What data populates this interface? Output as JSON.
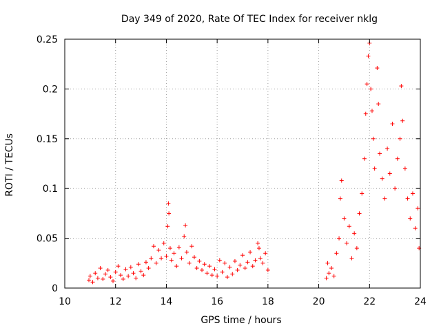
{
  "chart_data": {
    "type": "scatter",
    "title": "Day 349 of 2020, Rate Of TEC Index for receiver nklg",
    "xlabel": "GPS time / hours",
    "ylabel": "ROTI / TECUs",
    "xlim": [
      10,
      24
    ],
    "ylim": [
      0,
      0.25
    ],
    "xticks": [
      10,
      12,
      14,
      16,
      18,
      20,
      22,
      24
    ],
    "xtick_labels": [
      "10",
      "12",
      "14",
      "16",
      "18",
      "20",
      "22",
      "24"
    ],
    "yticks": [
      0,
      0.05,
      0.1,
      0.15,
      0.2,
      0.25
    ],
    "ytick_labels": [
      "0",
      "0.05",
      "0.1",
      "0.15",
      "0.2",
      "0.25"
    ],
    "grid": true,
    "marker": "+",
    "color": "#ff0000",
    "series": [
      {
        "name": "ROTI",
        "points": [
          [
            10.95,
            0.008
          ],
          [
            11.0,
            0.012
          ],
          [
            11.1,
            0.006
          ],
          [
            11.2,
            0.015
          ],
          [
            11.3,
            0.01
          ],
          [
            11.4,
            0.02
          ],
          [
            11.5,
            0.009
          ],
          [
            11.6,
            0.014
          ],
          [
            11.7,
            0.018
          ],
          [
            11.8,
            0.011
          ],
          [
            11.9,
            0.007
          ],
          [
            12.0,
            0.016
          ],
          [
            12.1,
            0.022
          ],
          [
            12.2,
            0.013
          ],
          [
            12.3,
            0.009
          ],
          [
            12.4,
            0.019
          ],
          [
            12.5,
            0.012
          ],
          [
            12.6,
            0.021
          ],
          [
            12.7,
            0.015
          ],
          [
            12.8,
            0.01
          ],
          [
            12.9,
            0.024
          ],
          [
            13.0,
            0.017
          ],
          [
            13.1,
            0.013
          ],
          [
            13.2,
            0.026
          ],
          [
            13.3,
            0.02
          ],
          [
            13.4,
            0.03
          ],
          [
            13.5,
            0.042
          ],
          [
            13.6,
            0.025
          ],
          [
            13.7,
            0.038
          ],
          [
            13.8,
            0.03
          ],
          [
            13.9,
            0.045
          ],
          [
            14.0,
            0.032
          ],
          [
            14.05,
            0.062
          ],
          [
            14.08,
            0.085
          ],
          [
            14.1,
            0.075
          ],
          [
            14.15,
            0.04
          ],
          [
            14.2,
            0.028
          ],
          [
            14.3,
            0.035
          ],
          [
            14.4,
            0.022
          ],
          [
            14.5,
            0.041
          ],
          [
            14.6,
            0.03
          ],
          [
            14.7,
            0.052
          ],
          [
            14.75,
            0.063
          ],
          [
            14.8,
            0.036
          ],
          [
            14.9,
            0.025
          ],
          [
            15.0,
            0.042
          ],
          [
            15.1,
            0.031
          ],
          [
            15.2,
            0.02
          ],
          [
            15.3,
            0.027
          ],
          [
            15.4,
            0.018
          ],
          [
            15.5,
            0.024
          ],
          [
            15.6,
            0.015
          ],
          [
            15.7,
            0.022
          ],
          [
            15.8,
            0.013
          ],
          [
            15.9,
            0.019
          ],
          [
            16.0,
            0.012
          ],
          [
            16.1,
            0.028
          ],
          [
            16.2,
            0.016
          ],
          [
            16.3,
            0.025
          ],
          [
            16.4,
            0.011
          ],
          [
            16.5,
            0.021
          ],
          [
            16.6,
            0.014
          ],
          [
            16.7,
            0.027
          ],
          [
            16.8,
            0.018
          ],
          [
            16.9,
            0.023
          ],
          [
            17.0,
            0.033
          ],
          [
            17.1,
            0.02
          ],
          [
            17.2,
            0.026
          ],
          [
            17.3,
            0.036
          ],
          [
            17.4,
            0.022
          ],
          [
            17.5,
            0.028
          ],
          [
            17.6,
            0.045
          ],
          [
            17.65,
            0.04
          ],
          [
            17.7,
            0.03
          ],
          [
            17.8,
            0.025
          ],
          [
            17.9,
            0.035
          ],
          [
            18.0,
            0.018
          ],
          [
            20.3,
            0.01
          ],
          [
            20.35,
            0.025
          ],
          [
            20.4,
            0.015
          ],
          [
            20.5,
            0.02
          ],
          [
            20.6,
            0.012
          ],
          [
            20.7,
            0.035
          ],
          [
            20.8,
            0.05
          ],
          [
            20.85,
            0.09
          ],
          [
            20.9,
            0.108
          ],
          [
            21.0,
            0.07
          ],
          [
            21.1,
            0.045
          ],
          [
            21.2,
            0.062
          ],
          [
            21.3,
            0.03
          ],
          [
            21.4,
            0.055
          ],
          [
            21.5,
            0.04
          ],
          [
            21.6,
            0.075
          ],
          [
            21.7,
            0.095
          ],
          [
            21.8,
            0.13
          ],
          [
            21.85,
            0.175
          ],
          [
            21.9,
            0.205
          ],
          [
            21.95,
            0.233
          ],
          [
            22.0,
            0.246
          ],
          [
            22.05,
            0.2
          ],
          [
            22.1,
            0.178
          ],
          [
            22.15,
            0.15
          ],
          [
            22.2,
            0.12
          ],
          [
            22.3,
            0.221
          ],
          [
            22.35,
            0.185
          ],
          [
            22.4,
            0.135
          ],
          [
            22.5,
            0.11
          ],
          [
            22.6,
            0.09
          ],
          [
            22.7,
            0.14
          ],
          [
            22.8,
            0.115
          ],
          [
            22.9,
            0.165
          ],
          [
            23.0,
            0.1
          ],
          [
            23.1,
            0.13
          ],
          [
            23.2,
            0.15
          ],
          [
            23.25,
            0.203
          ],
          [
            23.3,
            0.168
          ],
          [
            23.4,
            0.12
          ],
          [
            23.5,
            0.09
          ],
          [
            23.6,
            0.07
          ],
          [
            23.7,
            0.095
          ],
          [
            23.8,
            0.06
          ],
          [
            23.9,
            0.08
          ],
          [
            23.95,
            0.04
          ]
        ]
      }
    ]
  }
}
